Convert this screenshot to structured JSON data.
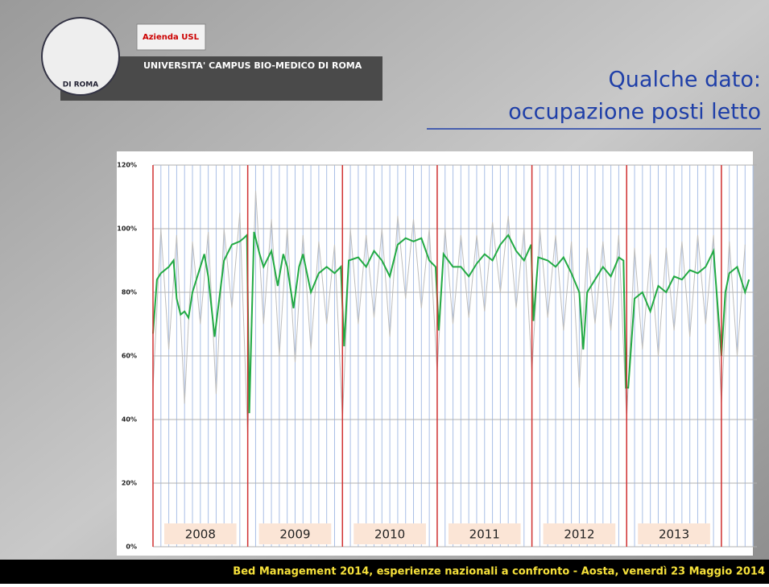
{
  "header": {
    "institution": "UNIVERSITA' CAMPUS BIO-MEDICO DI ROMA",
    "seal_bottom": "DI ROMA",
    "partner": "Azienda USL"
  },
  "footer": "Bed Management 2014, esperienze nazionali a confronto  - Aosta, venerdì 23 Maggio  2014",
  "chart_data": {
    "type": "line",
    "title": "Qualche dato:",
    "subtitle": "occupazione posti letto",
    "xlim": [
      0,
      76.5
    ],
    "ylim": [
      0,
      120
    ],
    "xticks": [
      0,
      1,
      2,
      3,
      4,
      5,
      6,
      7,
      8,
      9,
      10,
      11,
      12,
      13,
      14,
      15,
      16,
      17,
      18,
      19,
      20,
      21,
      22,
      23,
      24,
      25,
      26,
      27,
      28,
      29,
      30,
      31,
      32,
      33,
      34,
      35,
      36,
      37,
      38,
      39,
      40,
      41,
      42,
      43,
      44,
      45,
      46,
      47,
      48,
      49,
      50,
      51,
      52,
      53,
      54,
      55,
      56,
      57,
      58,
      59,
      60,
      61,
      62,
      63,
      64,
      65,
      66,
      67,
      68,
      69,
      70,
      71,
      72,
      73,
      74,
      75,
      76
    ],
    "yticks": [
      {
        "value": 0,
        "label": "0%"
      },
      {
        "value": 20,
        "label": "20%"
      },
      {
        "value": 40,
        "label": "40%"
      },
      {
        "value": 60,
        "label": "60%"
      },
      {
        "value": 80,
        "label": "80%"
      },
      {
        "value": 100,
        "label": "100%"
      },
      {
        "value": 120,
        "label": "120%"
      }
    ],
    "grid": true,
    "grid_color": "#b0b0b0",
    "xgrid_color": "#a9bfe6",
    "year_lines": [
      0,
      12,
      24,
      36,
      48,
      60,
      72
    ],
    "year_line_color": "#d03030",
    "year_labels": [
      "2008",
      "2009",
      "2010",
      "2011",
      "2012",
      "2013"
    ],
    "series": [
      {
        "color": "#bdbdbd",
        "x": [
          0,
          1,
          2,
          3,
          4,
          5,
          6,
          7,
          8,
          9,
          10,
          11,
          12,
          13,
          14,
          15,
          16,
          17,
          18,
          19,
          20,
          21,
          22,
          23,
          24,
          25,
          26,
          27,
          28,
          29,
          30,
          31,
          32,
          33,
          34,
          35,
          36,
          37,
          38,
          39,
          40,
          41,
          42,
          43,
          44,
          45,
          46,
          47,
          48,
          49,
          50,
          51,
          52,
          53,
          54,
          55,
          56,
          57,
          58,
          59,
          60,
          61,
          62,
          63,
          64,
          65,
          66,
          67,
          68,
          69,
          70,
          71,
          72,
          73,
          74,
          75
        ],
        "values": [
          50,
          100,
          62,
          98,
          45,
          96,
          70,
          99,
          48,
          100,
          75,
          105,
          35,
          112,
          70,
          103,
          60,
          100,
          58,
          98,
          62,
          96,
          70,
          95,
          40,
          100,
          70,
          98,
          72,
          100,
          66,
          104,
          78,
          103,
          75,
          100,
          55,
          100,
          70,
          98,
          72,
          98,
          74,
          102,
          80,
          104,
          75,
          100,
          55,
          100,
          72,
          98,
          68,
          96,
          50,
          94,
          70,
          96,
          68,
          98,
          40,
          94,
          62,
          92,
          60,
          94,
          68,
          96,
          66,
          98,
          70,
          98,
          45,
          96,
          60,
          95
        ]
      },
      {
        "color": "#22aa44",
        "x": [
          0,
          0.5,
          1,
          2,
          2.6,
          3,
          3.5,
          4,
          4.5,
          5,
          6,
          6.5,
          7,
          7.8,
          8.5,
          9,
          10,
          11,
          11.5,
          11.9,
          12.2,
          12.8,
          13.5,
          14,
          15,
          15.8,
          16.5,
          17,
          17.8,
          18.5,
          19,
          20,
          21,
          22,
          23,
          23.8,
          24.2,
          24.8,
          26,
          27,
          28,
          29,
          30,
          31,
          32,
          33,
          34,
          35,
          35.8,
          36.2,
          36.8,
          38,
          39,
          40,
          41,
          42,
          43,
          44,
          45,
          46,
          47,
          47.9,
          48.2,
          48.8,
          50,
          51,
          52,
          53,
          54,
          54.5,
          55,
          56,
          57,
          58,
          59,
          59.6,
          59.9,
          60.2,
          61,
          62,
          63,
          64,
          65,
          66,
          67,
          68,
          69,
          70,
          71,
          72,
          72.5,
          73,
          74,
          75,
          75.5
        ],
        "values": [
          67,
          84,
          86,
          88,
          90,
          78,
          73,
          74,
          72,
          80,
          88,
          92,
          85,
          66,
          80,
          90,
          95,
          96,
          97,
          98,
          42,
          99,
          92,
          88,
          93,
          82,
          92,
          88,
          75,
          88,
          92,
          80,
          86,
          88,
          86,
          88,
          63,
          90,
          91,
          88,
          93,
          90,
          85,
          95,
          97,
          96,
          97,
          90,
          88,
          68,
          92,
          88,
          88,
          85,
          89,
          92,
          90,
          95,
          98,
          93,
          90,
          95,
          71,
          91,
          90,
          88,
          91,
          86,
          80,
          62,
          80,
          84,
          88,
          85,
          91,
          90,
          50,
          50,
          78,
          80,
          74,
          82,
          80,
          85,
          84,
          87,
          86,
          88,
          93,
          60,
          80,
          86,
          88,
          80,
          84
        ]
      }
    ]
  }
}
